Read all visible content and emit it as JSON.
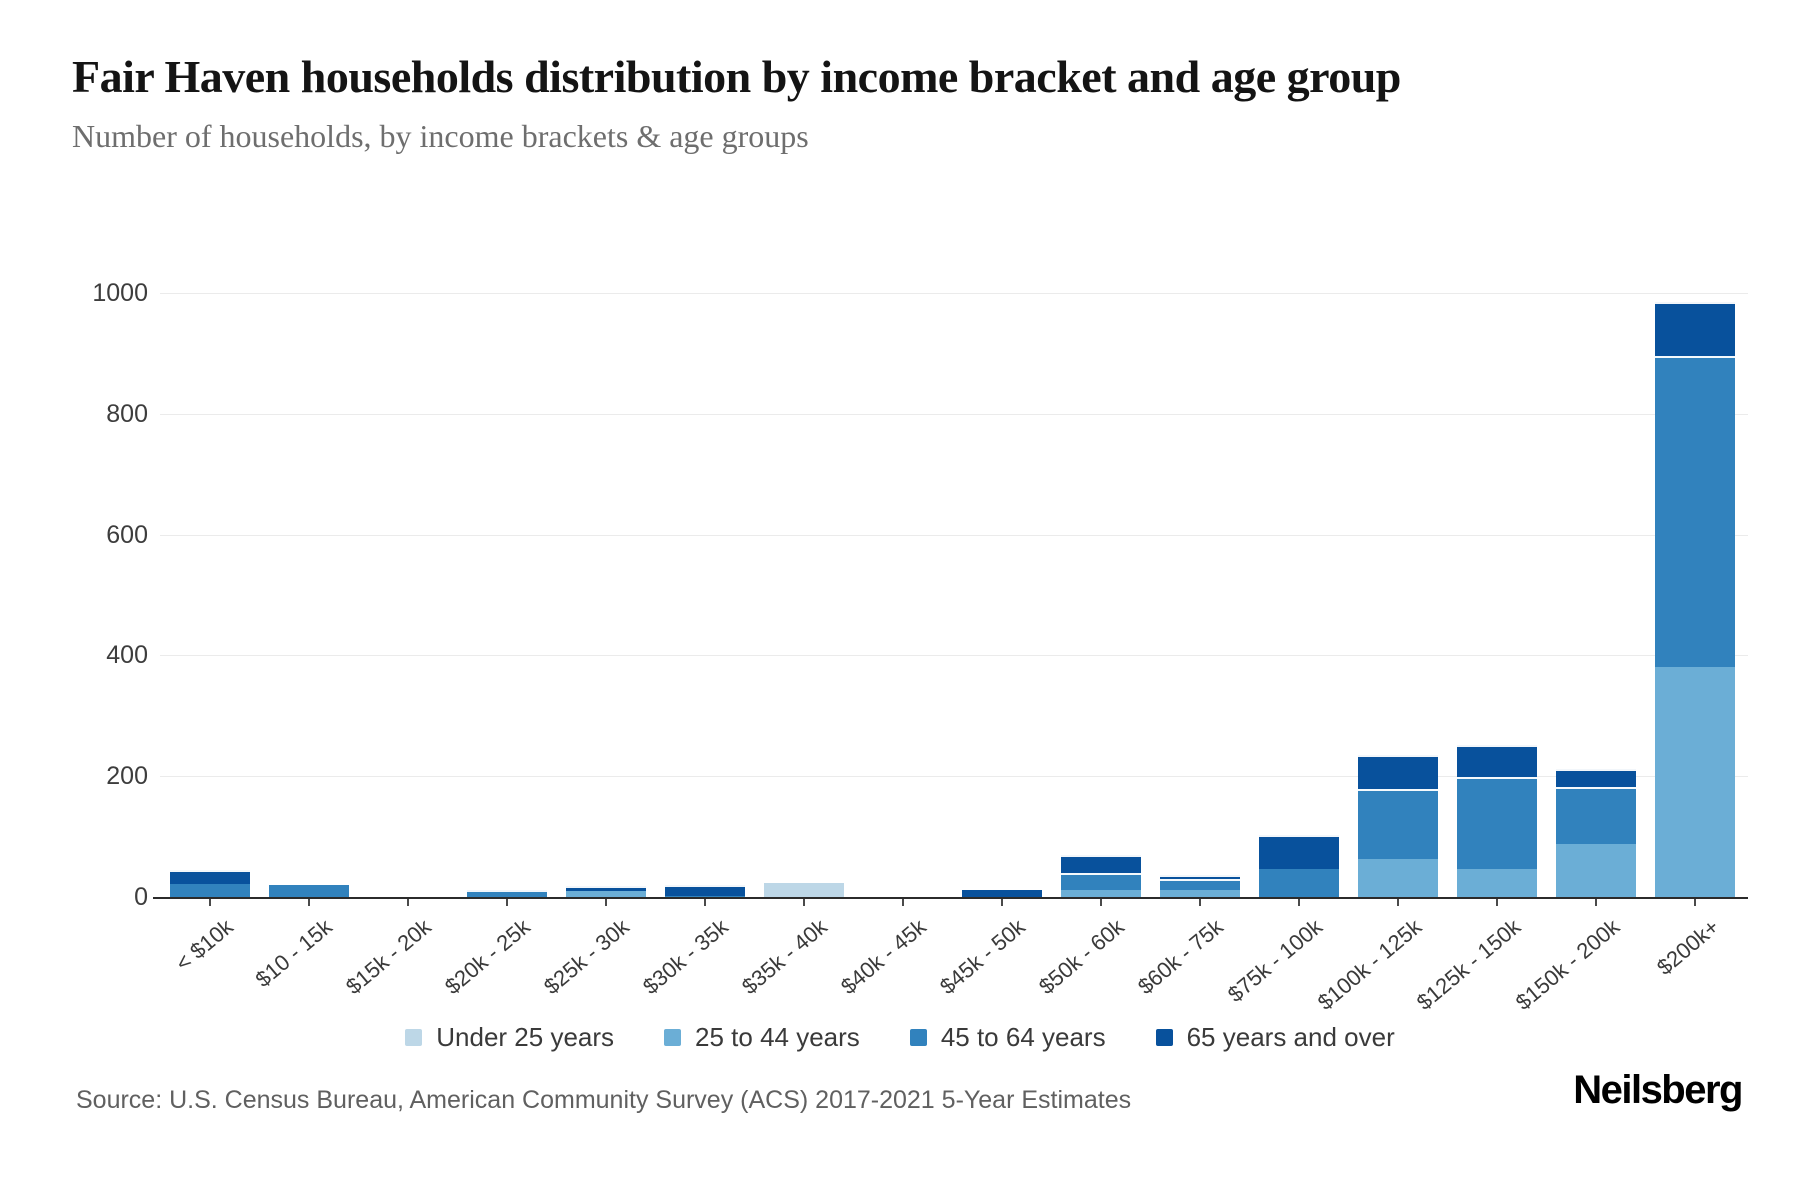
{
  "header": {
    "title": "Fair Haven households distribution by income bracket and age group",
    "subtitle": "Number of households, by income brackets & age groups"
  },
  "chart_data": {
    "type": "bar",
    "stacked": true,
    "title": "Fair Haven households distribution by income bracket and age group",
    "subtitle": "Number of households, by income brackets & age groups",
    "xlabel": "",
    "ylabel": "",
    "ylim": [
      0,
      1000
    ],
    "yticks": [
      0,
      200,
      400,
      600,
      800,
      1000
    ],
    "grid": true,
    "legend_position": "bottom",
    "categories": [
      "< $10k",
      "$10 - 15k",
      "$15k - 20k",
      "$20k - 25k",
      "$25k - 30k",
      "$30k - 35k",
      "$35k - 40k",
      "$40k - 45k",
      "$45k - 50k",
      "$50k - 60k",
      "$60k - 75k",
      "$75k - 100k",
      "$100k - 125k",
      "$125k - 150k",
      "$150k - 200k",
      "$200k+"
    ],
    "series": [
      {
        "name": "Under 25 years",
        "color": "#bdd7e7",
        "values": [
          0,
          0,
          0,
          0,
          0,
          0,
          24,
          0,
          0,
          0,
          0,
          0,
          0,
          0,
          0,
          0
        ]
      },
      {
        "name": "25 to 44 years",
        "color": "#6baed6",
        "values": [
          0,
          0,
          0,
          0,
          10,
          0,
          0,
          0,
          0,
          11,
          12,
          0,
          63,
          46,
          88,
          380
        ]
      },
      {
        "name": "45 to 64 years",
        "color": "#3182bd",
        "values": [
          21,
          20,
          0,
          9,
          0,
          2,
          0,
          0,
          0,
          29,
          17,
          47,
          116,
          152,
          94,
          515
        ]
      },
      {
        "name": "65 years and over",
        "color": "#08519c",
        "values": [
          24,
          0,
          0,
          2,
          8,
          18,
          0,
          0,
          11,
          29,
          7,
          55,
          56,
          54,
          30,
          90
        ]
      }
    ]
  },
  "footer": {
    "source": "Source: U.S. Census Bureau, American Community Survey (ACS) 2017-2021 5-Year Estimates",
    "brand": "Neilsberg"
  }
}
